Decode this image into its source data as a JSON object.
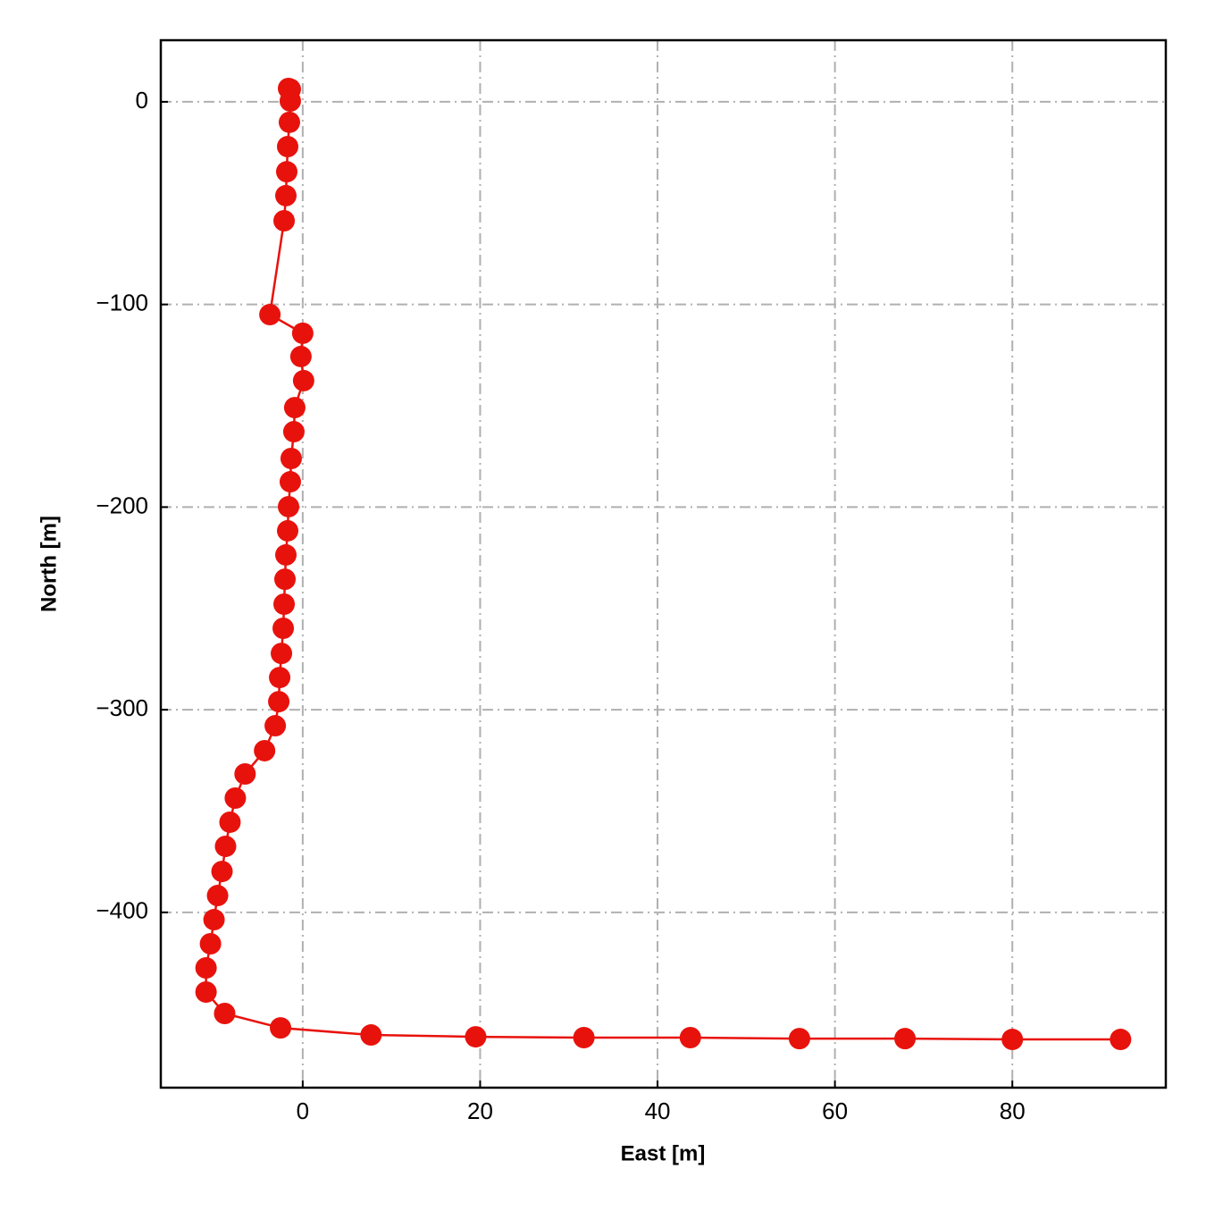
{
  "chart_data": {
    "type": "line",
    "xlabel": "East [m]",
    "ylabel": "North [m]",
    "x": [
      -1.6,
      -1.4,
      -1.4,
      -1.5,
      -1.7,
      -1.8,
      -1.9,
      -2.1,
      -3.7,
      0.0,
      -0.2,
      0.1,
      -0.9,
      -1.0,
      -1.3,
      -1.4,
      -1.6,
      -1.7,
      -1.9,
      -2.0,
      -2.1,
      -2.2,
      -2.4,
      -2.6,
      -2.7,
      -3.1,
      -4.3,
      -6.5,
      -7.6,
      -8.2,
      -8.7,
      -9.1,
      -9.6,
      -10.0,
      -10.4,
      -10.9,
      -10.9,
      -8.8,
      -2.5,
      7.7,
      19.5,
      31.7,
      43.7,
      56.0,
      67.9,
      80.0,
      92.2
    ],
    "values": [
      6.6,
      6.2,
      0.4,
      -10.1,
      -22.1,
      -34.5,
      -46.3,
      -58.7,
      -105.0,
      -114.2,
      -125.7,
      -137.6,
      -150.9,
      -162.8,
      -176.0,
      -187.5,
      -199.8,
      -211.7,
      -223.6,
      -235.6,
      -247.9,
      -259.8,
      -272.2,
      -284.1,
      -296.0,
      -307.9,
      -320.2,
      -331.7,
      -343.6,
      -355.5,
      -367.4,
      -379.8,
      -391.7,
      -403.6,
      -415.5,
      -427.4,
      -439.3,
      -449.9,
      -457.0,
      -460.5,
      -461.4,
      -461.8,
      -461.8,
      -462.3,
      -462.3,
      -462.7,
      -462.7
    ],
    "color": "#e8120c",
    "markers": true,
    "xlim": [
      -16,
      97.3
    ],
    "ylim": [
      -486.5,
      30.4
    ],
    "xticks": [
      0,
      20,
      40,
      60,
      80
    ],
    "yticks": [
      0,
      {
        "value": -100,
        "label": "−100"
      },
      {
        "value": -200,
        "label": "−200"
      },
      {
        "value": -300,
        "label": "−300"
      },
      {
        "value": -400,
        "label": "−400"
      }
    ],
    "grid": true
  }
}
